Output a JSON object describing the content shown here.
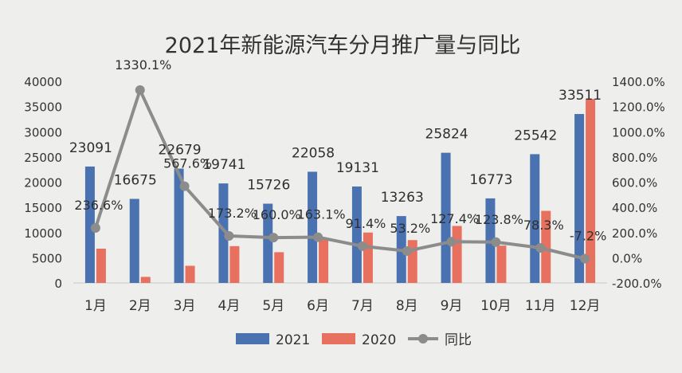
{
  "chart_data": {
    "type": "bar",
    "title": "2021年新能源汽车分月推广量与同比",
    "categories": [
      "1月",
      "2月",
      "3月",
      "4月",
      "5月",
      "6月",
      "7月",
      "8月",
      "9月",
      "10月",
      "11月",
      "12月"
    ],
    "series": [
      {
        "name": "2021",
        "type": "bar",
        "axis": "left",
        "color": "#4a72b0",
        "values": [
          23091,
          16675,
          22679,
          19741,
          15726,
          22058,
          19131,
          13263,
          25824,
          16773,
          25542,
          33511
        ]
      },
      {
        "name": "2020",
        "type": "bar",
        "axis": "left",
        "color": "#e8705f",
        "values": [
          6800,
          1200,
          3400,
          7300,
          6100,
          8600,
          10000,
          8500,
          11300,
          7400,
          14300,
          36500
        ]
      },
      {
        "name": "同比",
        "type": "line",
        "axis": "right",
        "color": "#8c8c8c",
        "values": [
          236.6,
          1330.1,
          567.6,
          173.2,
          160.0,
          163.1,
          91.4,
          53.2,
          127.4,
          123.8,
          78.3,
          -7.2
        ]
      }
    ],
    "bar_labels_2021": [
      "23091",
      "16675",
      "22679",
      "19741",
      "15726",
      "22058",
      "19131",
      "13263",
      "25824",
      "16773",
      "25542",
      "33511"
    ],
    "line_labels": [
      "236.6%",
      "1330.1%",
      "567.6%",
      "173.2%",
      "160.0%",
      "163.1%",
      "91.4%",
      "53.2%",
      "127.4%",
      "123.8%",
      "78.3%",
      "-7.2%"
    ],
    "y_left": {
      "min": 0,
      "max": 40000,
      "ticks": [
        "0",
        "5000",
        "10000",
        "15000",
        "20000",
        "25000",
        "30000",
        "35000",
        "40000"
      ]
    },
    "y_right": {
      "min": -200,
      "max": 1400,
      "ticks": [
        "-200.0%",
        "0.0%",
        "200.0%",
        "400.0%",
        "600.0%",
        "800.0%",
        "1000.0%",
        "1200.0%",
        "1400.0%"
      ]
    },
    "legend_position": "bottom",
    "grid": false
  }
}
